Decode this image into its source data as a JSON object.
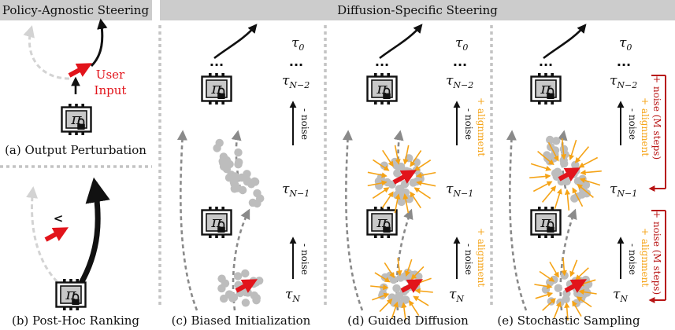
{
  "headers": {
    "left": "Policy-Agnostic Steering",
    "right": "Diffusion-Specific Steering"
  },
  "captions": {
    "a": "(a) Output Perturbation",
    "b": "(b) Post-Hoc Ranking",
    "c": "(c) Biased Initialization",
    "d": "(d) Guided Diffusion",
    "e": "(e) Stochastic Sampling"
  },
  "user_input": [
    "User",
    "Input"
  ],
  "less_than_symbol": "<",
  "ellipsis": "...",
  "policy_symbol": "π",
  "tau": {
    "symbol": "τ",
    "levels": [
      "0",
      "N−2",
      "N−1",
      "N"
    ]
  },
  "noise_label": "- noise",
  "alignment_label": "+ alignment",
  "noise_m_steps_label": "+ noise (M steps)",
  "colors": {
    "header_bg": "#cccccc",
    "user_arrow": "#e2141b",
    "alignment": "#f5a316",
    "noise_bracket": "#b81414",
    "sample_dot": "#bdbdbd",
    "dashed_path": "#8a8a8a",
    "faded_path": "#d3d3d3"
  },
  "icons": [
    "robot-policy-icon",
    "lock-icon"
  ]
}
